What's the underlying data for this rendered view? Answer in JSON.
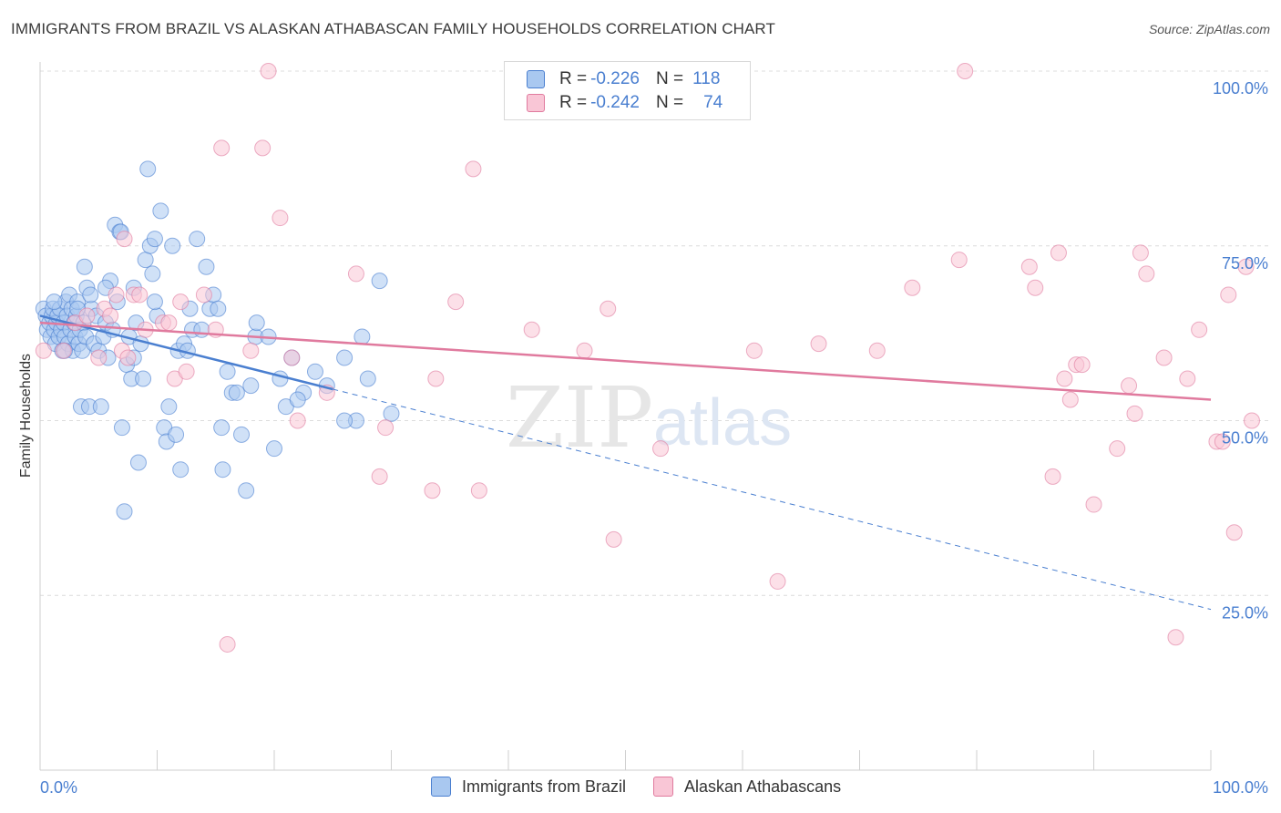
{
  "title": "IMMIGRANTS FROM BRAZIL VS ALASKAN ATHABASCAN FAMILY HOUSEHOLDS CORRELATION CHART",
  "source": "Source: ZipAtlas.com",
  "watermark": {
    "zip": "ZIP",
    "atlas": "atlas"
  },
  "legend": {
    "rows": [
      {
        "r_label": "R =",
        "r_value": "-0.226",
        "n_label": "N =",
        "n_value": "118",
        "color": "#a9c8f0",
        "border": "#4a7fd0"
      },
      {
        "r_label": "R =",
        "r_value": "-0.242",
        "n_label": "N =",
        "n_value": "74",
        "color": "#f9c6d6",
        "border": "#e07a9e"
      }
    ]
  },
  "bottom_legend": [
    {
      "label": "Immigrants from Brazil",
      "color": "#a9c8f0",
      "border": "#4a7fd0"
    },
    {
      "label": "Alaskan Athabascans",
      "color": "#f9c6d6",
      "border": "#e07a9e"
    }
  ],
  "chart_data": {
    "type": "scatter",
    "title": "IMMIGRANTS FROM BRAZIL VS ALASKAN ATHABASCAN FAMILY HOUSEHOLDS CORRELATION CHART",
    "xlabel": "",
    "ylabel": "Family Households",
    "xlim": [
      0,
      100
    ],
    "ylim": [
      0,
      100
    ],
    "x_tick_labels": [
      {
        "value": 0,
        "label": "0.0%"
      },
      {
        "value": 100,
        "label": "100.0%"
      }
    ],
    "y_tick_labels": [
      {
        "value": 25,
        "label": "25.0%"
      },
      {
        "value": 50,
        "label": "50.0%"
      },
      {
        "value": 75,
        "label": "75.0%"
      },
      {
        "value": 100,
        "label": "100.0%"
      }
    ],
    "grid": true,
    "legend_placement": "top-center",
    "series": [
      {
        "name": "Immigrants from Brazil",
        "color": "#4a7fd0",
        "fill": "#a9c8f0",
        "trend": {
          "x": [
            0,
            25
          ],
          "y": [
            65,
            54.5
          ]
        },
        "trend_extension": {
          "x": [
            25,
            100
          ],
          "y": [
            54.5,
            23
          ]
        },
        "points": [
          [
            0.3,
            66
          ],
          [
            0.5,
            65
          ],
          [
            0.6,
            63
          ],
          [
            0.8,
            64
          ],
          [
            0.9,
            62
          ],
          [
            1.0,
            65
          ],
          [
            1.1,
            66
          ],
          [
            1.2,
            63
          ],
          [
            1.3,
            61
          ],
          [
            1.4,
            64
          ],
          [
            1.5,
            65
          ],
          [
            1.6,
            62
          ],
          [
            1.7,
            66
          ],
          [
            1.8,
            63
          ],
          [
            1.9,
            60
          ],
          [
            2.0,
            64
          ],
          [
            2.1,
            62
          ],
          [
            2.2,
            67
          ],
          [
            2.3,
            65
          ],
          [
            2.4,
            61
          ],
          [
            2.5,
            68
          ],
          [
            2.6,
            63
          ],
          [
            2.7,
            66
          ],
          [
            2.8,
            60
          ],
          [
            2.9,
            64
          ],
          [
            3.0,
            62
          ],
          [
            3.1,
            65
          ],
          [
            3.2,
            67
          ],
          [
            3.3,
            61
          ],
          [
            3.4,
            63
          ],
          [
            3.5,
            52
          ],
          [
            3.6,
            60
          ],
          [
            3.7,
            64
          ],
          [
            3.8,
            72
          ],
          [
            3.9,
            62
          ],
          [
            4.0,
            69
          ],
          [
            4.2,
            52
          ],
          [
            4.4,
            66
          ],
          [
            4.6,
            61
          ],
          [
            4.8,
            65
          ],
          [
            5.0,
            60
          ],
          [
            5.2,
            52
          ],
          [
            5.4,
            62
          ],
          [
            5.6,
            64
          ],
          [
            5.8,
            59
          ],
          [
            6.0,
            70
          ],
          [
            6.2,
            63
          ],
          [
            6.4,
            78
          ],
          [
            6.6,
            67
          ],
          [
            6.8,
            77
          ],
          [
            7.0,
            49
          ],
          [
            7.2,
            37
          ],
          [
            7.4,
            58
          ],
          [
            7.6,
            62
          ],
          [
            7.8,
            56
          ],
          [
            8.0,
            69
          ],
          [
            8.2,
            64
          ],
          [
            8.4,
            44
          ],
          [
            8.6,
            61
          ],
          [
            8.8,
            56
          ],
          [
            9.0,
            73
          ],
          [
            9.2,
            86
          ],
          [
            9.4,
            75
          ],
          [
            9.6,
            71
          ],
          [
            9.8,
            76
          ],
          [
            10.0,
            65
          ],
          [
            10.3,
            80
          ],
          [
            10.6,
            49
          ],
          [
            10.8,
            47
          ],
          [
            11.0,
            52
          ],
          [
            11.3,
            75
          ],
          [
            11.6,
            48
          ],
          [
            11.8,
            60
          ],
          [
            12.0,
            43
          ],
          [
            12.3,
            61
          ],
          [
            12.6,
            60
          ],
          [
            13.0,
            63
          ],
          [
            13.4,
            76
          ],
          [
            13.8,
            63
          ],
          [
            14.2,
            72
          ],
          [
            14.5,
            66
          ],
          [
            14.8,
            68
          ],
          [
            15.2,
            66
          ],
          [
            15.6,
            43
          ],
          [
            16.0,
            57
          ],
          [
            16.4,
            54
          ],
          [
            16.8,
            54
          ],
          [
            17.2,
            48
          ],
          [
            17.6,
            40
          ],
          [
            18.0,
            55
          ],
          [
            18.4,
            62
          ],
          [
            19.5,
            62
          ],
          [
            20.5,
            56
          ],
          [
            21.5,
            59
          ],
          [
            22.5,
            54
          ],
          [
            23.5,
            57
          ],
          [
            24.5,
            55
          ],
          [
            26,
            59
          ],
          [
            27,
            50
          ],
          [
            28,
            56
          ],
          [
            29,
            70
          ],
          [
            21,
            52
          ],
          [
            20,
            46
          ],
          [
            30,
            51
          ],
          [
            26,
            50
          ],
          [
            22,
            53
          ],
          [
            27.5,
            62
          ],
          [
            18.5,
            64
          ],
          [
            15.5,
            49
          ],
          [
            12.8,
            66
          ],
          [
            9.8,
            67
          ],
          [
            8.0,
            59
          ],
          [
            6.9,
            77
          ],
          [
            5.6,
            69
          ],
          [
            4.3,
            68
          ],
          [
            3.2,
            66
          ],
          [
            2.1,
            60
          ],
          [
            1.2,
            67
          ]
        ]
      },
      {
        "name": "Alaskan Athabascans",
        "color": "#e07a9e",
        "fill": "#f9c6d6",
        "trend": {
          "x": [
            0,
            100
          ],
          "y": [
            64,
            53
          ]
        },
        "points": [
          [
            0.3,
            60
          ],
          [
            2.0,
            60
          ],
          [
            3.0,
            64
          ],
          [
            4.0,
            65
          ],
          [
            5.0,
            59
          ],
          [
            5.5,
            66
          ],
          [
            6.0,
            65
          ],
          [
            6.5,
            68
          ],
          [
            7.0,
            60
          ],
          [
            7.5,
            59
          ],
          [
            8.0,
            68
          ],
          [
            8.5,
            68
          ],
          [
            9.0,
            63
          ],
          [
            10.5,
            64
          ],
          [
            11.5,
            56
          ],
          [
            12.5,
            57
          ],
          [
            14.0,
            68
          ],
          [
            15.0,
            63
          ],
          [
            12.0,
            67
          ],
          [
            7.2,
            76
          ],
          [
            11.0,
            64
          ],
          [
            15.5,
            89
          ],
          [
            16.0,
            18
          ],
          [
            18.0,
            60
          ],
          [
            19.0,
            89
          ],
          [
            19.5,
            100
          ],
          [
            20.5,
            79
          ],
          [
            21.5,
            59
          ],
          [
            22.0,
            50
          ],
          [
            24.5,
            54
          ],
          [
            27.0,
            71
          ],
          [
            29.0,
            42
          ],
          [
            29.5,
            49
          ],
          [
            33.5,
            40
          ],
          [
            33.8,
            56
          ],
          [
            35.5,
            67
          ],
          [
            37.0,
            86
          ],
          [
            37.5,
            40
          ],
          [
            42.0,
            63
          ],
          [
            46.5,
            60
          ],
          [
            48.5,
            66
          ],
          [
            49.0,
            33
          ],
          [
            53.0,
            46
          ],
          [
            61.0,
            60
          ],
          [
            63.0,
            27
          ],
          [
            66.5,
            61
          ],
          [
            71.5,
            60
          ],
          [
            74.5,
            69
          ],
          [
            78.5,
            73
          ],
          [
            79.0,
            100
          ],
          [
            84.5,
            72
          ],
          [
            85.0,
            69
          ],
          [
            86.5,
            42
          ],
          [
            87.0,
            74
          ],
          [
            87.5,
            56
          ],
          [
            88.0,
            53
          ],
          [
            88.5,
            58
          ],
          [
            89.0,
            58
          ],
          [
            90.0,
            38
          ],
          [
            92.0,
            46
          ],
          [
            93.0,
            55
          ],
          [
            93.5,
            51
          ],
          [
            94.0,
            74
          ],
          [
            94.5,
            71
          ],
          [
            96.0,
            59
          ],
          [
            97.0,
            19
          ],
          [
            98.0,
            56
          ],
          [
            99.0,
            63
          ],
          [
            100.5,
            47
          ],
          [
            101.0,
            47
          ],
          [
            101.5,
            68
          ],
          [
            102.0,
            34
          ],
          [
            103.0,
            72
          ],
          [
            103.5,
            50
          ]
        ]
      }
    ]
  }
}
